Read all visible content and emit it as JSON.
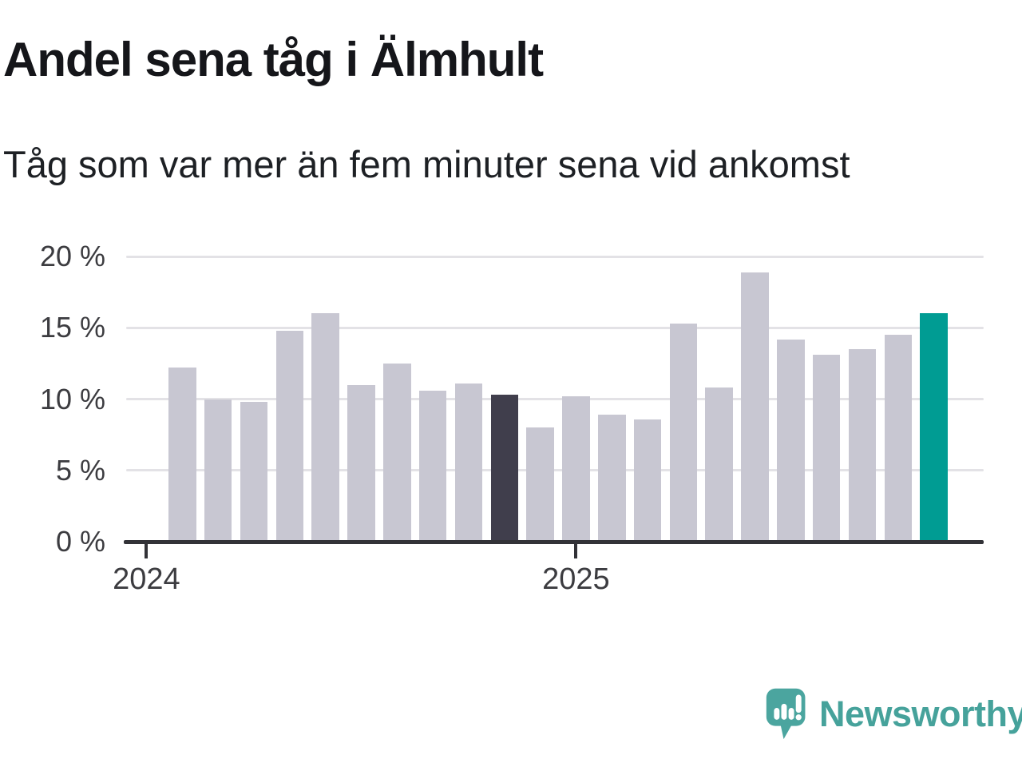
{
  "header": {
    "title": "Andel sena tåg i Älmhult",
    "subtitle": "Tåg som var mer än fem minuter sena vid ankomst"
  },
  "branding": {
    "wordmark": "Newsworthy"
  },
  "colors": {
    "background": "#ffffff",
    "bar_default": "#c8c7d2",
    "bar_highlight_dark": "#403e4c",
    "bar_highlight_current": "#009c93",
    "gridline": "#e3e2e6",
    "axis": "#323237",
    "title_text": "#15161a",
    "axis_label": "#3c3c40",
    "brand_teal": "#46a29b",
    "logo_bubble": "#4ba59f"
  },
  "chart_data": {
    "type": "bar",
    "title": "Andel sena tåg i Älmhult",
    "subtitle": "Tåg som var mer än fem minuter sena vid ankomst",
    "unit": "%",
    "ylim": [
      0,
      20
    ],
    "grid": true,
    "legend": "none",
    "y_ticks": [
      {
        "value": 0,
        "label": "0 %"
      },
      {
        "value": 5,
        "label": "5 %"
      },
      {
        "value": 10,
        "label": "10 %"
      },
      {
        "value": 15,
        "label": "15 %"
      },
      {
        "value": 20,
        "label": "20 %"
      }
    ],
    "x_ticks": [
      {
        "label": "2024",
        "month": "2024-01"
      },
      {
        "label": "2025",
        "month": "2025-01"
      }
    ],
    "x_domain": [
      "2024-01",
      "2025-11"
    ],
    "categories": [
      "2024-02",
      "2024-03",
      "2024-04",
      "2024-05",
      "2024-06",
      "2024-07",
      "2024-08",
      "2024-09",
      "2024-10",
      "2024-11",
      "2024-12",
      "2025-01",
      "2025-02",
      "2025-03",
      "2025-04",
      "2025-05",
      "2025-06",
      "2025-07",
      "2025-08",
      "2025-09",
      "2025-10",
      "2025-11"
    ],
    "values": [
      12.2,
      10.0,
      9.8,
      14.8,
      16.0,
      11.0,
      12.5,
      10.6,
      11.1,
      10.3,
      8.0,
      10.2,
      8.9,
      8.6,
      15.3,
      10.8,
      18.9,
      14.2,
      13.1,
      13.5,
      14.5,
      16.0
    ],
    "highlight_dark_month": "2024-11",
    "highlight_current_month": "2025-11"
  }
}
